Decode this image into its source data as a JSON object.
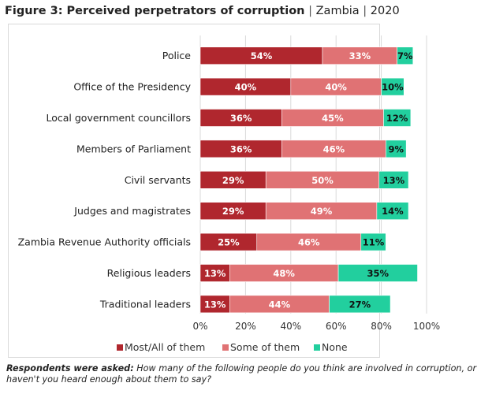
{
  "chart_data": {
    "type": "bar",
    "orientation": "horizontal",
    "stacked": true,
    "title": "Figure 3: Perceived perpetrators of corruption",
    "subtitle_parts": [
      "Zambia",
      "2020"
    ],
    "categories": [
      "Police",
      "Office of the Presidency",
      "Local government councillors",
      "Members of Parliament",
      "Civil servants",
      "Judges and magistrates",
      "Zambia Revenue Authority officials",
      "Religious leaders",
      "Traditional leaders"
    ],
    "series": [
      {
        "name": "Most/All of them",
        "color": "#b0272e",
        "label_color": "#ffffff",
        "values": [
          54,
          40,
          36,
          36,
          29,
          29,
          25,
          13,
          13
        ]
      },
      {
        "name": "Some of them",
        "color": "#e07274",
        "label_color": "#ffffff",
        "values": [
          33,
          40,
          45,
          46,
          50,
          49,
          46,
          48,
          44
        ]
      },
      {
        "name": "None",
        "color": "#22cf9e",
        "label_color": "#111111",
        "values": [
          7,
          10,
          12,
          9,
          13,
          14,
          11,
          35,
          27
        ]
      }
    ],
    "xlim": [
      0,
      100
    ],
    "xticks": [
      "0%",
      "20%",
      "40%",
      "60%",
      "80%",
      "100%"
    ],
    "xlabel": "",
    "ylabel": "",
    "grid": "vertical",
    "legend": "bottom",
    "value_suffix": "%"
  },
  "footnote": {
    "lead": "Respondents were asked:",
    "text": " How many of the following people do you think are involved in corruption, or haven't you heard enough about them to say?"
  }
}
